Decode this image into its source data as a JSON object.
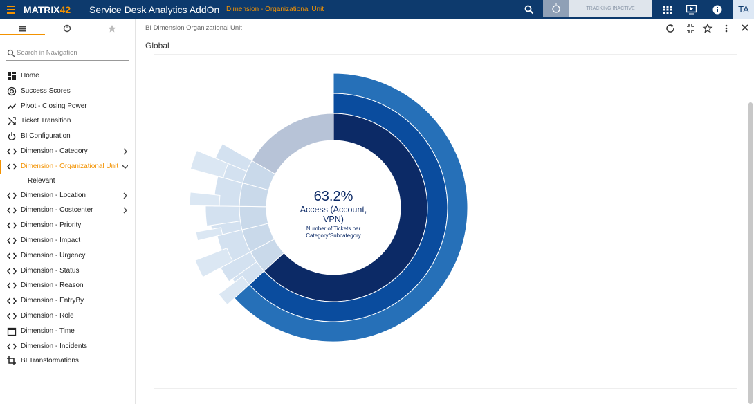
{
  "header": {
    "logo": {
      "text": "MATRIX",
      "accent": "42"
    },
    "app_title": "Service Desk Analytics AddOn",
    "breadcrumb": "Dimension - Organizational Unit",
    "tracking": "TRACKING INACTIVE",
    "user": "TA"
  },
  "sidebar": {
    "search_placeholder": "Search in Navigation",
    "items": [
      {
        "label": "Home",
        "icon": "home"
      },
      {
        "label": "Success Scores",
        "icon": "score"
      },
      {
        "label": "Pivot - Closing Power",
        "icon": "trend"
      },
      {
        "label": "Ticket Transition",
        "icon": "shuffle"
      },
      {
        "label": "BI Configuration",
        "icon": "power"
      },
      {
        "label": "Dimension - Category",
        "icon": "code",
        "expandable": true
      },
      {
        "label": "Dimension - Organizational Unit",
        "icon": "code",
        "expandable": true,
        "active": true,
        "children": [
          "Relevant"
        ]
      },
      {
        "label": "Dimension - Location",
        "icon": "code",
        "expandable": true
      },
      {
        "label": "Dimension - Costcenter",
        "icon": "code",
        "expandable": true
      },
      {
        "label": "Dimension - Priority",
        "icon": "code"
      },
      {
        "label": "Dimension - Impact",
        "icon": "code"
      },
      {
        "label": "Dimension - Urgency",
        "icon": "code"
      },
      {
        "label": "Dimension - Status",
        "icon": "code"
      },
      {
        "label": "Dimension - Reason",
        "icon": "code"
      },
      {
        "label": "Dimension - EntryBy",
        "icon": "code"
      },
      {
        "label": "Dimension - Role",
        "icon": "code"
      },
      {
        "label": "Dimension - Time",
        "icon": "calendar"
      },
      {
        "label": "Dimension - Incidents",
        "icon": "code"
      },
      {
        "label": "BI Transformations",
        "icon": "crop"
      }
    ]
  },
  "panel": {
    "title": "BI Dimension Organizational Unit",
    "section": "Global"
  },
  "chart_data": {
    "type": "sunburst",
    "center_label": "Number of Tickets per Category/Subcategory",
    "rings": [
      {
        "categories": [
          "Access (Account, VPN)",
          null,
          null,
          null,
          null,
          null,
          null
        ],
        "values": [
          63.2,
          4,
          4,
          4,
          4,
          4.1,
          16.7
        ],
        "value_labels": [
          "63.2%",
          null,
          null,
          null,
          null,
          null,
          null
        ],
        "colors": [
          "#0c2a66",
          "#c9d9ea",
          "#c9d9ea",
          "#c9d9ea",
          "#c9d9ea",
          "#c9d9ea",
          "#b7c3d7"
        ]
      },
      {
        "values": [
          63.2,
          2,
          2,
          4,
          1.5,
          2.5,
          4,
          2.1,
          2
        ],
        "parents": [
          0,
          1,
          1,
          2,
          3,
          3,
          4,
          5,
          5
        ],
        "colors": [
          "#0a4c9e",
          "#d3e1f0",
          "#d3e1f0",
          "#d3e1f0",
          "#d3e1f0",
          "#d3e1f0",
          "#d3e1f0",
          "#d3e1f0",
          "#d3e1f0"
        ]
      },
      {
        "values": [
          63.2,
          1.5,
          2,
          1,
          1.5,
          2.1
        ],
        "parents": [
          0,
          1,
          3,
          4,
          6,
          7
        ],
        "colors": [
          "#2670b8",
          "#dbe7f3",
          "#dbe7f3",
          "#dbe7f3",
          "#dbe7f3",
          "#dbe7f3"
        ]
      }
    ]
  }
}
